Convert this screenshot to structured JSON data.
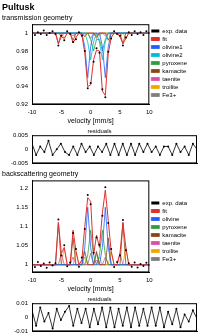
{
  "chart_data": [
    {
      "type": "line",
      "title": "Pultusk",
      "subtitle": "transmission geometry",
      "x_label": "velocity [mm/s]",
      "xlim": [
        -10,
        10
      ],
      "xticks": [
        -10,
        -5,
        0,
        5,
        10
      ],
      "ylim": [
        0.92,
        1.01
      ],
      "yticks": [
        0.92,
        0.94,
        0.96,
        0.98,
        1
      ],
      "grid": false,
      "legend": "right",
      "x": [
        -10,
        -9.5,
        -9,
        -8.5,
        -8,
        -7.5,
        -7,
        -6.5,
        -6,
        -5.5,
        -5,
        -4.5,
        -4,
        -3.5,
        -3,
        -2.5,
        -2,
        -1.5,
        -1,
        -0.5,
        0,
        0.5,
        1,
        1.5,
        2,
        2.5,
        3,
        3.5,
        4,
        4.5,
        5,
        5.5,
        6,
        6.5,
        7,
        7.5,
        8,
        8.5,
        9,
        9.5,
        10
      ],
      "series": [
        {
          "name": "exp. data",
          "color": "#000000",
          "marker": "circle",
          "line_style": "none",
          "values": [
            1.002,
            0.998,
            1.001,
            0.999,
            1.003,
            0.998,
            1.0,
            1.002,
            0.999,
            0.986,
            0.997,
            0.992,
            1.002,
            0.999,
            0.99,
            0.993,
            1.001,
            0.997,
            0.98,
            0.938,
            0.944,
            0.968,
            0.983,
            0.978,
            0.937,
            0.928,
            0.979,
            0.994,
            1.002,
            0.999,
            0.997,
            0.986,
            0.995,
            1.001,
            0.998,
            1.002,
            0.999,
            1.001,
            0.998,
            1.002,
            1.0
          ]
        },
        {
          "name": "fit",
          "color": "#e03030",
          "marker": "none",
          "line_style": "solid",
          "values": [
            1,
            1,
            1,
            1,
            1,
            1,
            1,
            1,
            1,
            0.988,
            0.996,
            0.994,
            1,
            1,
            0.989,
            0.995,
            1,
            0.998,
            0.978,
            0.94,
            0.942,
            0.97,
            0.981,
            0.98,
            0.935,
            0.93,
            0.977,
            0.995,
            1,
            1,
            0.996,
            0.988,
            0.994,
            1,
            1,
            1,
            1,
            1,
            1,
            1,
            1
          ]
        },
        {
          "name": "olivine1",
          "color": "#1f5fff",
          "marker": "none",
          "line_style": "solid",
          "x": [
            -10,
            -1.5,
            -1,
            -0.5,
            0,
            0.5,
            1.5,
            2,
            2.5,
            3,
            3.5,
            10
          ],
          "values": [
            1,
            1,
            0.985,
            0.95,
            0.985,
            1,
            1,
            0.985,
            0.95,
            0.985,
            1,
            1
          ]
        },
        {
          "name": "olivine2",
          "color": "#00bcd4",
          "marker": "none",
          "line_style": "solid",
          "x": [
            -10,
            -1,
            -0.5,
            0,
            0.5,
            1,
            1.5,
            2,
            2.5,
            3,
            10
          ],
          "values": [
            1,
            1,
            0.99,
            0.97,
            0.99,
            1,
            0.99,
            0.97,
            0.99,
            1,
            1
          ]
        },
        {
          "name": "pyroxene",
          "color": "#2e9e3e",
          "marker": "none",
          "line_style": "solid",
          "x": [
            -10,
            -0.5,
            0,
            0.5,
            1,
            1.5,
            2,
            2.5,
            3,
            10
          ],
          "values": [
            1,
            1,
            0.993,
            0.98,
            0.993,
            0.993,
            0.98,
            0.993,
            1,
            1
          ]
        },
        {
          "name": "kamacite",
          "color": "#8b4513",
          "marker": "none",
          "line_style": "solid",
          "x": [
            -10,
            -6,
            -5.5,
            -5,
            -3.5,
            -3,
            -2.5,
            -1.5,
            -1,
            -0.5,
            0.5,
            1,
            1.5,
            2.5,
            3,
            3.5,
            5,
            5.5,
            6,
            10
          ],
          "values": [
            1,
            1,
            0.988,
            1,
            1,
            0.992,
            1,
            1,
            0.996,
            1,
            1,
            0.996,
            1,
            1,
            0.992,
            1,
            1,
            0.988,
            1,
            1
          ]
        },
        {
          "name": "taenite",
          "color": "#d94fb0",
          "marker": "none",
          "line_style": "solid",
          "x": [
            -10,
            -5.5,
            -5,
            -4.5,
            -3.5,
            -3,
            -2.5,
            -2,
            -1.5,
            -1,
            0.5,
            1,
            1.5,
            2,
            2.5,
            3,
            4.5,
            5,
            5.5,
            10
          ],
          "values": [
            1,
            1,
            0.996,
            1,
            1,
            0.997,
            1,
            1,
            0.998,
            1,
            1,
            0.998,
            1,
            1,
            0.997,
            1,
            1,
            0.996,
            1,
            1
          ]
        },
        {
          "name": "troilite",
          "color": "#f0a800",
          "marker": "none",
          "line_style": "solid",
          "x": [
            -10,
            -5,
            -4.5,
            -4,
            -3,
            -2.5,
            -2,
            -1.5,
            -1,
            -0.5,
            1,
            1.5,
            2,
            3,
            3.5,
            4,
            5.5,
            6,
            6.5,
            10
          ],
          "values": [
            1,
            1,
            0.994,
            1,
            1,
            0.995,
            1,
            1,
            0.997,
            1,
            1,
            0.997,
            1,
            1,
            0.995,
            1,
            1,
            0.994,
            1,
            1
          ]
        },
        {
          "name": "Fe3+",
          "color": "#7f7f7f",
          "marker": "none",
          "line_style": "solid",
          "x": [
            -10,
            -0.5,
            0,
            0.5,
            1,
            1.5,
            10
          ],
          "values": [
            1,
            1,
            0.994,
            1,
            0.994,
            1,
            1
          ]
        }
      ]
    },
    {
      "type": "line",
      "title": "residuals",
      "xlim": [
        -10,
        10
      ],
      "xticks": [
        -10,
        -5,
        0,
        5,
        10
      ],
      "ylim": [
        -0.005,
        0.005
      ],
      "yticks": [
        -0.005,
        0,
        0.005
      ],
      "grid": false,
      "tick_labels": "y",
      "x": [
        -10,
        -9.5,
        -9,
        -8.5,
        -8,
        -7.5,
        -7,
        -6.5,
        -6,
        -5.5,
        -5,
        -4.5,
        -4,
        -3.5,
        -3,
        -2.5,
        -2,
        -1.5,
        -1,
        -0.5,
        0,
        0.5,
        1,
        1.5,
        2,
        2.5,
        3,
        3.5,
        4,
        4.5,
        5,
        5.5,
        6,
        6.5,
        7,
        7.5,
        8,
        8.5,
        9,
        9.5,
        10
      ],
      "series": [
        {
          "color": "#000000",
          "marker": "circle",
          "line_style": "solid",
          "values": [
            0.002,
            -0.002,
            0.001,
            -0.001,
            0.003,
            -0.002,
            0,
            0.002,
            -0.001,
            -0.002,
            0.001,
            -0.002,
            0.002,
            -0.001,
            0.001,
            -0.002,
            0.001,
            -0.001,
            0.002,
            -0.002,
            0.002,
            -0.002,
            0.002,
            -0.002,
            0.002,
            -0.002,
            0.002,
            -0.001,
            0.002,
            -0.001,
            0.001,
            -0.002,
            0.001,
            0.001,
            -0.002,
            0.002,
            -0.001,
            0.001,
            -0.002,
            0.002,
            0
          ]
        }
      ]
    },
    {
      "type": "line",
      "subtitle": "backscattering geometry",
      "x_label": "velocity [mm/s]",
      "xlim": [
        -10,
        10
      ],
      "xticks": [
        -10,
        -5,
        0,
        5,
        10
      ],
      "ylim": [
        0.98,
        1.22
      ],
      "yticks": [
        1,
        1.05,
        1.1,
        1.15,
        1.2
      ],
      "grid": false,
      "legend": "right",
      "x": [
        -10,
        -9.5,
        -9,
        -8.5,
        -8,
        -7.5,
        -7,
        -6.5,
        -6,
        -5.5,
        -5,
        -4.5,
        -4,
        -3.5,
        -3,
        -2.5,
        -2,
        -1.5,
        -1,
        -0.5,
        0,
        0.5,
        1,
        1.5,
        2,
        2.5,
        3,
        3.5,
        4,
        4.5,
        5,
        5.5,
        6,
        6.5,
        7,
        7.5,
        8,
        8.5,
        9,
        9.5,
        10
      ],
      "series": [
        {
          "name": "exp. data",
          "color": "#000000",
          "marker": "circle",
          "line_style": "none",
          "values": [
            1.005,
            0.994,
            1.007,
            0.997,
            1.003,
            0.992,
            1.006,
            0.998,
            1.004,
            1.118,
            1.024,
            1.051,
            0.996,
            1.006,
            1.083,
            1.041,
            0.995,
            1.019,
            1.093,
            1.182,
            1.158,
            1.031,
            1.071,
            1.052,
            1.128,
            1.202,
            1.109,
            1.041,
            0.994,
            1.007,
            1.024,
            1.117,
            1.038,
            1.004,
            0.995,
            1.006,
            0.993,
            1.002,
            0.997,
            1.005,
            0.999
          ]
        },
        {
          "name": "fit",
          "color": "#e03030",
          "marker": "none",
          "line_style": "solid",
          "values": [
            1,
            1,
            1,
            1,
            1,
            1,
            1,
            1,
            1,
            1.11,
            1.03,
            1.045,
            1,
            1,
            1.09,
            1.035,
            1,
            1.012,
            1.1,
            1.175,
            1.165,
            1.025,
            1.077,
            1.045,
            1.135,
            1.195,
            1.115,
            1.035,
            1,
            1,
            1.03,
            1.11,
            1.045,
            1,
            1,
            1,
            1,
            1,
            1,
            1,
            1
          ]
        },
        {
          "name": "olivine",
          "color": "#1f5fff",
          "marker": "none",
          "line_style": "solid",
          "x": [
            -10,
            -1.5,
            -1,
            -0.5,
            0,
            0.5,
            1.5,
            2,
            2.5,
            3,
            3.5,
            10
          ],
          "values": [
            1,
            1,
            1.045,
            1.15,
            1.045,
            1,
            1,
            1.045,
            1.15,
            1.045,
            1,
            1
          ]
        },
        {
          "name": "pyroxene",
          "color": "#2e9e3e",
          "marker": "none",
          "line_style": "solid",
          "x": [
            -10,
            -1,
            -0.5,
            0,
            0.5,
            1,
            1.5,
            2,
            2.5,
            3,
            10
          ],
          "values": [
            1,
            1,
            1.025,
            1.09,
            1.025,
            1,
            1.025,
            1.09,
            1.025,
            1,
            1
          ]
        },
        {
          "name": "kamacite",
          "color": "#8b4513",
          "marker": "none",
          "line_style": "solid",
          "x": [
            -10,
            -6,
            -5.5,
            -5,
            -3.5,
            -3,
            -2.5,
            -1.5,
            -1,
            -0.5,
            0.5,
            1,
            1.5,
            2.5,
            3,
            3.5,
            5,
            5.5,
            6,
            10
          ],
          "values": [
            1,
            1,
            1.11,
            1,
            1,
            1.07,
            1,
            1,
            1.035,
            1,
            1,
            1.035,
            1,
            1,
            1.07,
            1,
            1,
            1.11,
            1,
            1
          ]
        },
        {
          "name": "taenite",
          "color": "#d94fb0",
          "marker": "none",
          "line_style": "solid",
          "x": [
            -10,
            -5.5,
            -5,
            -4.5,
            -3.5,
            -3,
            -2.5,
            -2,
            -1.5,
            -1,
            0.5,
            1,
            1.5,
            2,
            2.5,
            3,
            4.5,
            5,
            5.5,
            10
          ],
          "values": [
            1,
            1,
            1.03,
            1,
            1,
            1.02,
            1,
            1,
            1.012,
            1,
            1,
            1.012,
            1,
            1,
            1.02,
            1,
            1,
            1.03,
            1,
            1
          ]
        },
        {
          "name": "troilite",
          "color": "#f0a800",
          "marker": "none",
          "line_style": "solid",
          "x": [
            -10,
            -5,
            -4.5,
            -4,
            -3,
            -2.5,
            -2,
            -1.5,
            -1,
            -0.5,
            1,
            1.5,
            2,
            3,
            3.5,
            4,
            5.5,
            6,
            6.5,
            10
          ],
          "values": [
            1,
            1,
            1.045,
            1,
            1,
            1.035,
            1,
            1,
            1.02,
            1,
            1,
            1.02,
            1,
            1,
            1.035,
            1,
            1,
            1.045,
            1,
            1
          ]
        },
        {
          "name": "Fe3+",
          "color": "#7f7f7f",
          "marker": "none",
          "line_style": "solid",
          "x": [
            -10,
            -0.5,
            0,
            0.5,
            1,
            1.5,
            10
          ],
          "values": [
            1,
            1,
            1.03,
            1,
            1.03,
            1,
            1
          ]
        }
      ]
    },
    {
      "type": "line",
      "title": "residuals",
      "xlim": [
        -10,
        10
      ],
      "xticks": [
        -10,
        -5,
        0,
        5,
        10
      ],
      "ylim": [
        -0.01,
        0.01
      ],
      "yticks": [
        -0.01,
        0,
        0.01
      ],
      "grid": false,
      "tick_labels": "y",
      "x": [
        -10,
        -9.5,
        -9,
        -8.5,
        -8,
        -7.5,
        -7,
        -6.5,
        -6,
        -5.5,
        -5,
        -4.5,
        -4,
        -3.5,
        -3,
        -2.5,
        -2,
        -1.5,
        -1,
        -0.5,
        0,
        0.5,
        1,
        1.5,
        2,
        2.5,
        3,
        3.5,
        4,
        4.5,
        5,
        5.5,
        6,
        6.5,
        7,
        7.5,
        8,
        8.5,
        9,
        9.5,
        10
      ],
      "series": [
        {
          "color": "#000000",
          "marker": "circle",
          "line_style": "solid",
          "values": [
            0.005,
            -0.006,
            0.007,
            -0.003,
            0.003,
            -0.008,
            0.006,
            -0.002,
            0.004,
            0.008,
            -0.006,
            0.006,
            -0.004,
            0.006,
            -0.007,
            0.006,
            -0.005,
            0.007,
            -0.007,
            0.007,
            -0.007,
            0.006,
            -0.006,
            0.007,
            -0.007,
            0.007,
            -0.006,
            0.006,
            -0.006,
            0.007,
            -0.006,
            0.007,
            -0.007,
            0.004,
            -0.005,
            0.006,
            -0.007,
            0.002,
            -0.003,
            0.005,
            -0.001
          ]
        }
      ]
    }
  ]
}
